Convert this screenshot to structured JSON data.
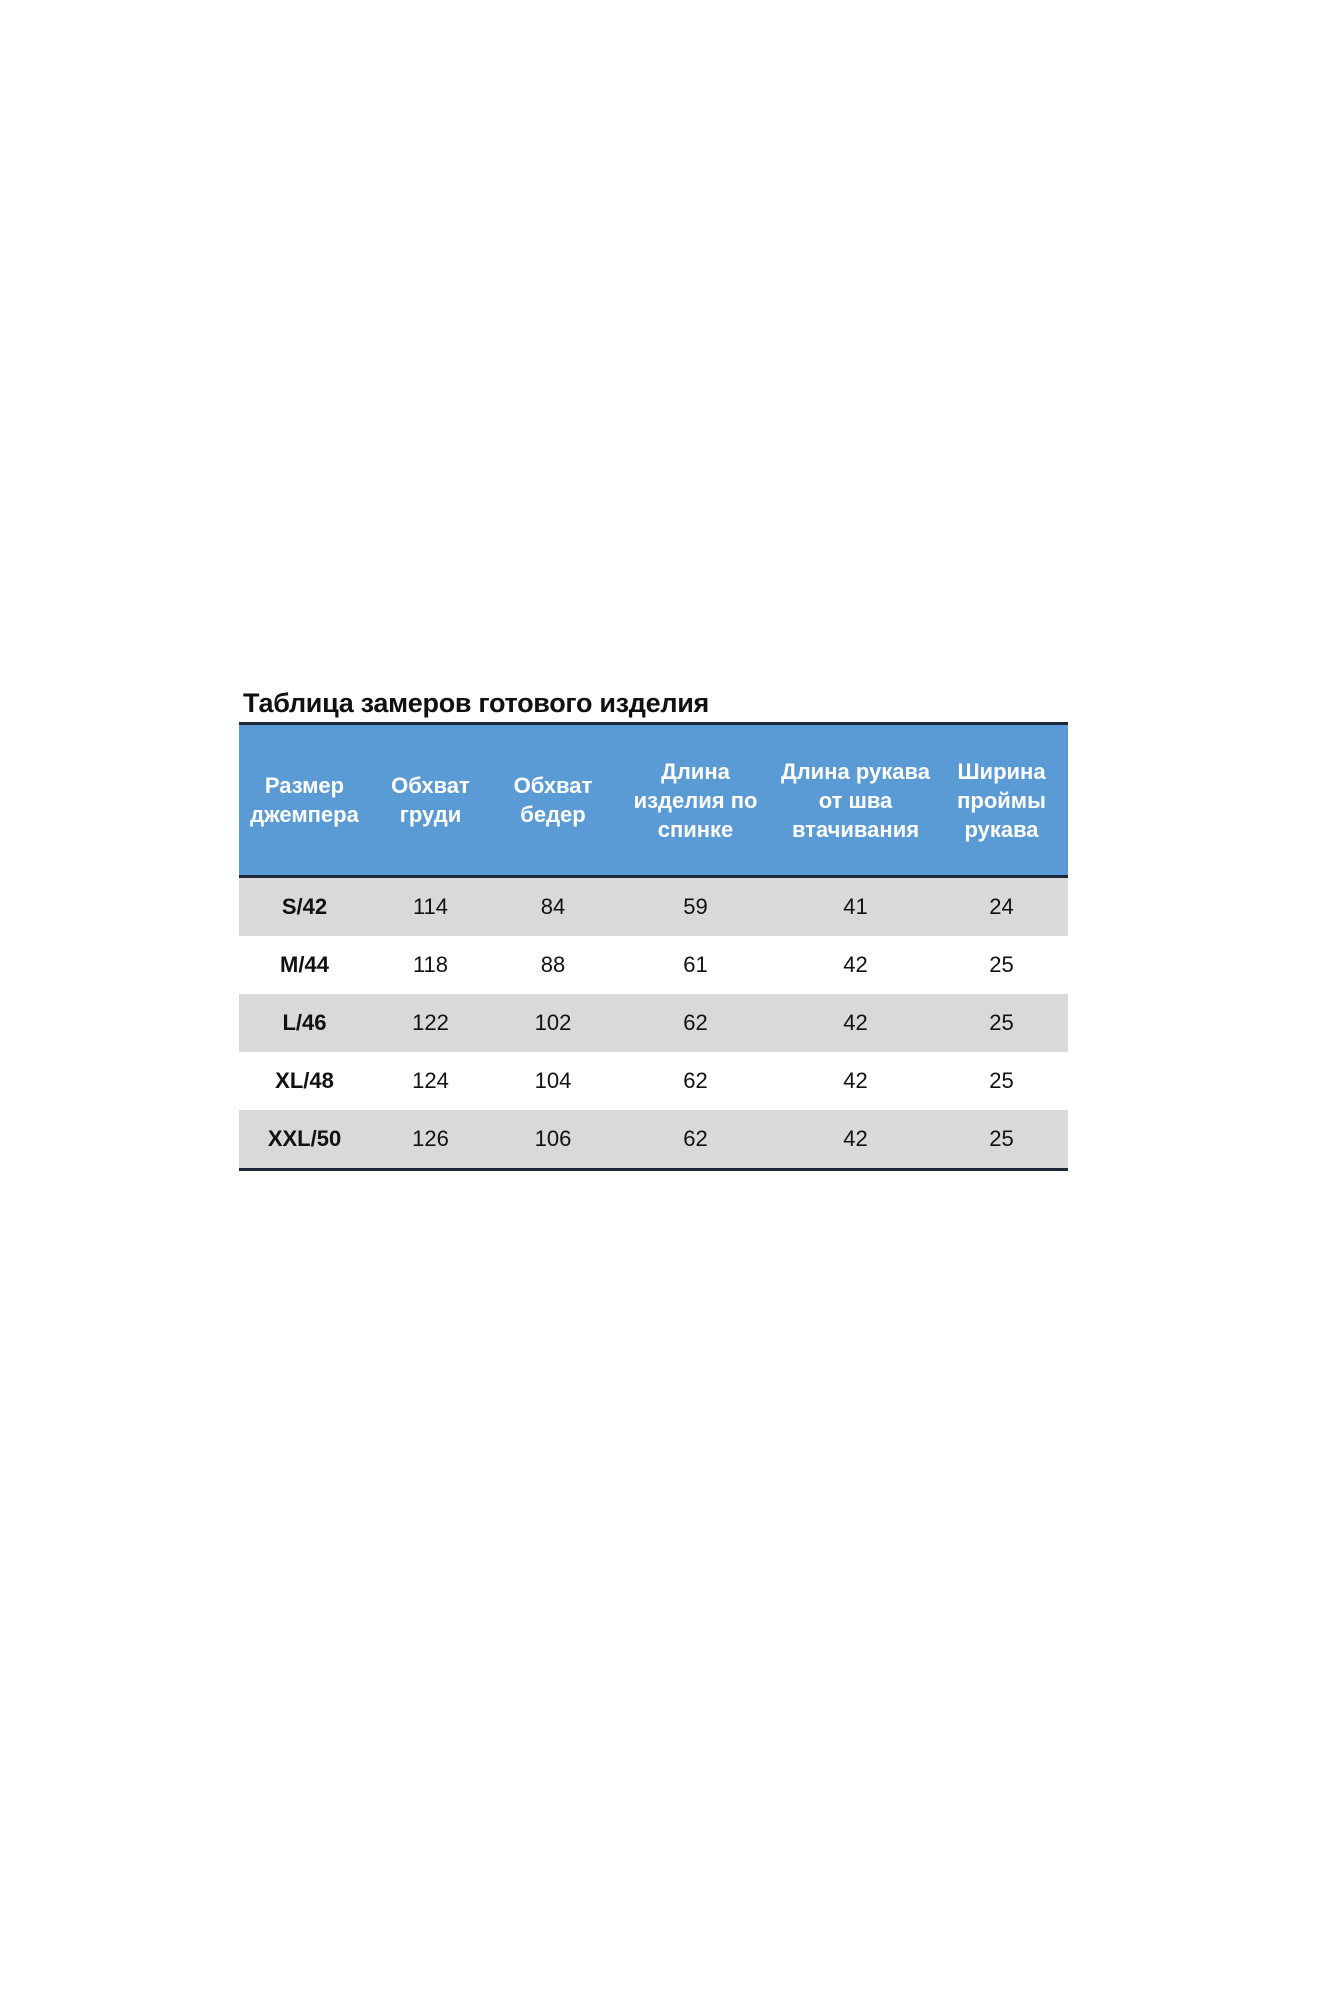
{
  "title": "Таблица замеров готового изделия",
  "colors": {
    "header_bg": "#5b9bd5",
    "stripe": "#d9d9d9",
    "rule": "#1c2838"
  },
  "columns": [
    "Размер джемпера",
    "Обхват груди",
    "Обхват бедер",
    "Длина изделия по спинке",
    "Длина рукава от шва втачивания",
    "Ширина проймы рукава"
  ],
  "rows": [
    [
      "S/42",
      "114",
      "84",
      "59",
      "41",
      "24"
    ],
    [
      "M/44",
      "118",
      "88",
      "61",
      "42",
      "25"
    ],
    [
      "L/46",
      "122",
      "102",
      "62",
      "42",
      "25"
    ],
    [
      "XL/48",
      "124",
      "104",
      "62",
      "42",
      "25"
    ],
    [
      "XXL/50",
      "126",
      "106",
      "62",
      "42",
      "25"
    ]
  ]
}
